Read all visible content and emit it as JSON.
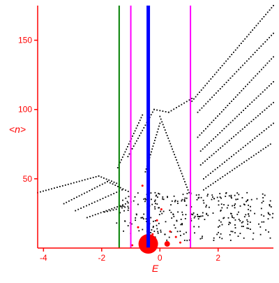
{
  "chart_data": {
    "type": "scatter",
    "title": "",
    "xlabel": "E",
    "ylabel": "<n>",
    "xlim": [
      -4.2,
      3.9
    ],
    "ylim": [
      0,
      175
    ],
    "xticks": [
      -4,
      -2,
      0,
      2
    ],
    "yticks": [
      50,
      100,
      150
    ],
    "xtick_labels": [
      "-4",
      "-2",
      "0",
      "2"
    ],
    "ytick_labels": [
      "50",
      "100",
      "150"
    ],
    "grid": false,
    "legend": "none",
    "colors": {
      "axis": "#ff0000",
      "points": "#000000",
      "red_points": "#ff0000",
      "green_line": "#008000",
      "magenta_line": "#ff00ff",
      "blue_line": "#0000ff"
    },
    "vertical_lines": [
      {
        "x": -1.4,
        "color": "#008000",
        "width": 2
      },
      {
        "x": -1.0,
        "color": "#ff00ff",
        "width": 2
      },
      {
        "x": -0.4,
        "color": "#0000ff",
        "width": 5
      },
      {
        "x": 1.05,
        "color": "#ff00ff",
        "width": 2
      }
    ],
    "series": [
      {
        "kind": "line-dots",
        "color": "#000000",
        "from": [
          -4.2,
          40
        ],
        "to": [
          -2.1,
          52
        ]
      },
      {
        "kind": "line-dots",
        "color": "#000000",
        "from": [
          -2.1,
          52
        ],
        "to": [
          -1.4,
          46
        ]
      },
      {
        "kind": "line-dots",
        "color": "#000000",
        "from": [
          -3.3,
          32
        ],
        "to": [
          -1.8,
          48
        ]
      },
      {
        "kind": "line-dots",
        "color": "#000000",
        "from": [
          -1.8,
          48
        ],
        "to": [
          -1.0,
          40
        ]
      },
      {
        "kind": "line-dots",
        "color": "#000000",
        "from": [
          -2.9,
          27
        ],
        "to": [
          -1.3,
          42
        ]
      },
      {
        "kind": "line-dots",
        "color": "#000000",
        "from": [
          -2.5,
          22
        ],
        "to": [
          -0.9,
          34
        ]
      },
      {
        "kind": "line-dots",
        "color": "#000000",
        "from": [
          -1.9,
          26
        ],
        "to": [
          -1.1,
          30
        ]
      },
      {
        "kind": "line-dots",
        "color": "#000000",
        "from": [
          -1.45,
          58
        ],
        "to": [
          -0.6,
          96
        ]
      },
      {
        "kind": "line-dots",
        "color": "#000000",
        "from": [
          -1.1,
          66
        ],
        "to": [
          -0.2,
          100
        ]
      },
      {
        "kind": "line-dots",
        "color": "#000000",
        "from": [
          -0.2,
          100
        ],
        "to": [
          0.3,
          98
        ]
      },
      {
        "kind": "line-dots",
        "color": "#000000",
        "from": [
          0.3,
          98
        ],
        "to": [
          1.1,
          108
        ]
      },
      {
        "kind": "line-dots",
        "color": "#000000",
        "from": [
          1.1,
          106
        ],
        "to": [
          3.9,
          175
        ]
      },
      {
        "kind": "line-dots",
        "color": "#000000",
        "from": [
          1.3,
          98
        ],
        "to": [
          3.9,
          155
        ]
      },
      {
        "kind": "line-dots",
        "color": "#000000",
        "from": [
          1.3,
          80
        ],
        "to": [
          3.9,
          138
        ]
      },
      {
        "kind": "line-dots",
        "color": "#000000",
        "from": [
          1.4,
          70
        ],
        "to": [
          3.9,
          120
        ]
      },
      {
        "kind": "line-dots",
        "color": "#000000",
        "from": [
          1.4,
          60
        ],
        "to": [
          3.9,
          105
        ]
      },
      {
        "kind": "line-dots",
        "color": "#000000",
        "from": [
          1.5,
          50
        ],
        "to": [
          3.9,
          90
        ]
      },
      {
        "kind": "line-dots",
        "color": "#000000",
        "from": [
          1.5,
          42
        ],
        "to": [
          3.8,
          75
        ]
      },
      {
        "kind": "line-dots",
        "color": "#000000",
        "from": [
          0.0,
          95
        ],
        "to": [
          1.0,
          40
        ]
      },
      {
        "kind": "line-dots",
        "color": "#000000",
        "from": [
          0.0,
          90
        ],
        "to": [
          -0.5,
          55
        ]
      },
      {
        "kind": "cloud",
        "color": "#000000",
        "xrange": [
          -0.5,
          3.9
        ],
        "yrange": [
          5,
          40
        ],
        "count": 260
      },
      {
        "kind": "cloud",
        "color": "#000000",
        "xrange": [
          -1.5,
          0.0
        ],
        "yrange": [
          4,
          40
        ],
        "count": 60
      }
    ],
    "red_points": [
      {
        "x": -0.4,
        "y": 3,
        "r": 14
      },
      {
        "x": 0.25,
        "y": 3,
        "r": 4
      },
      {
        "x": -0.95,
        "y": 2,
        "r": 1.5
      },
      {
        "x": -0.75,
        "y": 15,
        "r": 1.5
      },
      {
        "x": -0.1,
        "y": 20,
        "r": 1.5
      },
      {
        "x": 0.05,
        "y": 28,
        "r": 1.5
      },
      {
        "x": 0.35,
        "y": 12,
        "r": 1.5
      },
      {
        "x": -0.6,
        "y": 45,
        "r": 1.5
      },
      {
        "x": 0.55,
        "y": 8,
        "r": 1.5
      },
      {
        "x": -0.25,
        "y": 10,
        "r": 1.5
      },
      {
        "x": 0.7,
        "y": 4,
        "r": 1.5
      }
    ]
  }
}
